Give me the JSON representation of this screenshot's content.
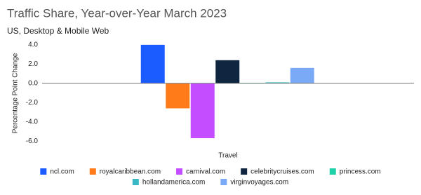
{
  "chart_data": {
    "type": "bar",
    "title": "Traffic Share, Year-over-Year March 2023",
    "subtitle": "US, Desktop & Mobile Web",
    "y_label": "Percentage Point Change",
    "categories": [
      "Travel"
    ],
    "series": [
      {
        "name": "ncl.com",
        "color": "#1a5cff",
        "values": [
          4.0
        ]
      },
      {
        "name": "royalcaribbean.com",
        "color": "#ff7b1a",
        "values": [
          -2.6
        ]
      },
      {
        "name": "carnival.com",
        "color": "#c44dff",
        "values": [
          -5.7
        ]
      },
      {
        "name": "celebritycruises.com",
        "color": "#0f2640",
        "values": [
          2.4
        ]
      },
      {
        "name": "princess.com",
        "color": "#1ed1a8",
        "values": [
          0.05
        ]
      },
      {
        "name": "hollandamerica.com",
        "color": "#3ab8c6",
        "values": [
          0.1
        ]
      },
      {
        "name": "virginvoyages.com",
        "color": "#7aaaf5",
        "values": [
          1.6
        ]
      }
    ],
    "ylim": [
      -6.5,
      4.5
    ],
    "yticks": [
      {
        "value": -6,
        "label": "-6.0"
      },
      {
        "value": -4,
        "label": "-4.0"
      },
      {
        "value": -2,
        "label": "-2.0"
      },
      {
        "value": 0,
        "label": "0.0"
      },
      {
        "value": 2,
        "label": "2.0"
      },
      {
        "value": 4,
        "label": "4.0"
      }
    ],
    "grid": false,
    "legend": "bottom"
  }
}
